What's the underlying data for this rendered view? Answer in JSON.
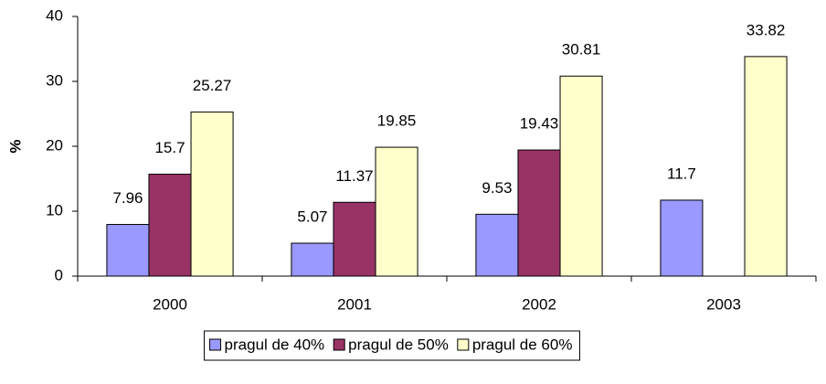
{
  "chart_data": {
    "type": "bar",
    "y_label": "%",
    "categories": [
      "2000",
      "2001",
      "2002",
      "2003"
    ],
    "series": [
      {
        "name": "pragul de 40%",
        "color": "#9999ff",
        "values": [
          7.96,
          5.07,
          9.53,
          11.7
        ]
      },
      {
        "name": "pragul de 50%",
        "color": "#993366",
        "values": [
          15.7,
          11.37,
          19.43,
          null
        ]
      },
      {
        "name": "pragul de 60%",
        "color": "#ffffcc",
        "values": [
          25.27,
          19.85,
          30.81,
          33.82
        ]
      }
    ],
    "ylim": [
      0,
      40
    ],
    "yticks": [
      0,
      10,
      20,
      30,
      40
    ],
    "grid": false,
    "legend": "bottom"
  }
}
